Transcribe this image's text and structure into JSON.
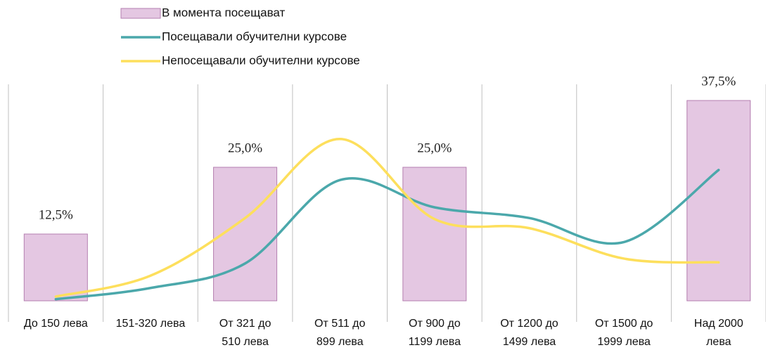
{
  "chart_data": {
    "type": "combo",
    "categories": [
      "До 150 лева",
      "151-320 лева",
      "От 321 до\n510 лева",
      "От 511 до\n899 лева",
      "От 900 до\n1199 лева",
      "От 1200 до\n1499 лева",
      "От 1500 до\n1999 лева",
      "Над 2000\nлева"
    ],
    "series": [
      {
        "name": "В момента посещават",
        "type": "bar",
        "color": "#e4c7e2",
        "values": [
          12.5,
          null,
          25.0,
          null,
          25.0,
          null,
          null,
          37.5
        ],
        "value_labels": [
          "12,5%",
          null,
          "25,0%",
          null,
          "25,0%",
          null,
          null,
          "37,5%"
        ]
      },
      {
        "name": "Посещавали обучителни курсове",
        "type": "line",
        "color": "#4ba8ab",
        "values": [
          0.3,
          2.4,
          7.0,
          22.6,
          17.5,
          15.5,
          11.0,
          24.5
        ]
      },
      {
        "name": "Непосещавали обучителни курсове",
        "type": "line",
        "color": "#fddf5c",
        "values": [
          0.8,
          4.7,
          15.5,
          30.3,
          15.3,
          13.6,
          7.9,
          7.2
        ]
      }
    ],
    "ylim": [
      0,
      40
    ],
    "smooth": true,
    "legend": "top"
  }
}
